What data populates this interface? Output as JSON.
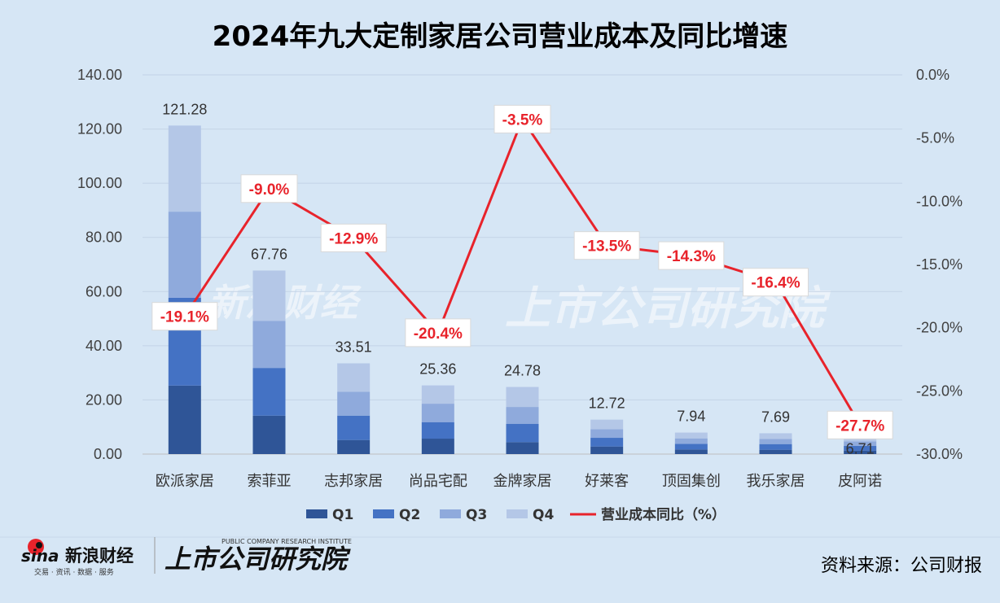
{
  "title": "2024年九大定制家居公司营业成本及同比增速",
  "source": "资料来源：公司财报",
  "logo": {
    "sina_text": "新浪财经",
    "sina_sub": "交易 · 资讯 · 数据 · 服务",
    "institute_text": "上市公司研究院",
    "institute_sub": "PUBLIC COMPANY RESEARCH INSTITUTE"
  },
  "colors": {
    "background": "#d6e6f5",
    "q1": "#2f5597",
    "q2": "#4472c4",
    "q3": "#8faadc",
    "q4": "#b4c7e7",
    "line": "#e8232b"
  },
  "chart_data": {
    "type": "bar",
    "stacked": true,
    "categories": [
      "欧派家居",
      "索菲亚",
      "志邦家居",
      "尚品宅配",
      "金牌家居",
      "好莱客",
      "顶固集创",
      "我乐家居",
      "皮阿诺"
    ],
    "series": [
      {
        "name": "Q1",
        "values": [
          25.3,
          14.2,
          5.2,
          5.7,
          4.4,
          2.8,
          1.7,
          1.6,
          1.3
        ]
      },
      {
        "name": "Q2",
        "values": [
          32.4,
          17.6,
          9.0,
          6.1,
          6.8,
          3.2,
          2.1,
          2.1,
          1.7
        ]
      },
      {
        "name": "Q3",
        "values": [
          31.8,
          17.4,
          8.8,
          6.8,
          6.2,
          3.2,
          2.0,
          1.9,
          1.7
        ]
      },
      {
        "name": "Q4",
        "values": [
          31.78,
          18.56,
          10.51,
          6.76,
          7.38,
          3.52,
          2.14,
          2.09,
          2.01
        ]
      }
    ],
    "totals": [
      "121.28",
      "67.76",
      "33.51",
      "25.36",
      "24.78",
      "12.72",
      "7.94",
      "7.69",
      "6.71"
    ],
    "line_series": {
      "name": "营业成本同比（%）",
      "values": [
        -19.1,
        -9.0,
        -12.9,
        -20.4,
        -3.5,
        -13.5,
        -14.3,
        -16.4,
        -27.7
      ],
      "labels": [
        "-19.1%",
        "-9.0%",
        "-12.9%",
        "-20.4%",
        "-3.5%",
        "-13.5%",
        "-14.3%",
        "-16.4%",
        "-27.7%"
      ]
    },
    "y_left": {
      "min": 0,
      "max": 140,
      "ticks": [
        "0.00",
        "20.00",
        "40.00",
        "60.00",
        "80.00",
        "100.00",
        "120.00",
        "140.00"
      ]
    },
    "y_right": {
      "min": -30,
      "max": 0,
      "ticks": [
        "-30.0%",
        "-25.0%",
        "-20.0%",
        "-15.0%",
        "-10.0%",
        "-5.0%",
        "0.0%"
      ]
    },
    "legend": [
      "Q1",
      "Q2",
      "Q3",
      "Q4",
      "营业成本同比（%）"
    ],
    "legend_position": "bottom",
    "grid": true
  }
}
